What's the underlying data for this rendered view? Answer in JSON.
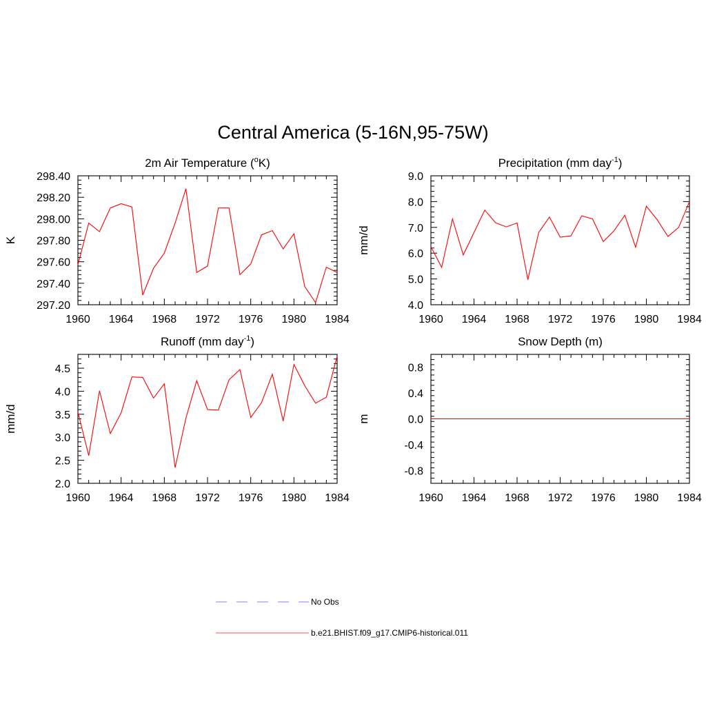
{
  "figure": {
    "title": "Central America (5-16N,95-75W)"
  },
  "legend": {
    "items": [
      {
        "label": "No Obs",
        "color": "#9a9aff",
        "style": "dashed"
      },
      {
        "label": "b.e21.BHIST.f09_g17.CMIP6-historical.011",
        "color": "#ff0000",
        "style": "solid"
      }
    ]
  },
  "chart_data": [
    {
      "id": "temp",
      "type": "line",
      "title": "2m Air Temperature (",
      "title_sup": "o",
      "title_tail": "K)",
      "ylabel": "K",
      "xlim": [
        1960,
        1984
      ],
      "ylim": [
        297.2,
        298.4
      ],
      "xticks": [
        "1960",
        "1964",
        "1968",
        "1972",
        "1976",
        "1980",
        "1984"
      ],
      "yticks": [
        "297.20",
        "297.40",
        "297.60",
        "297.80",
        "298.00",
        "298.20",
        "298.40"
      ],
      "grid": false,
      "series": [
        {
          "color": "#ff0000",
          "x": [
            1960,
            1961,
            1962,
            1963,
            1964,
            1965,
            1966,
            1967,
            1968,
            1969,
            1970,
            1971,
            1972,
            1973,
            1974,
            1975,
            1976,
            1977,
            1978,
            1979,
            1980,
            1981,
            1982,
            1983,
            1984
          ],
          "values": [
            297.57,
            297.96,
            297.88,
            298.1,
            298.14,
            298.11,
            297.29,
            297.54,
            297.68,
            297.96,
            298.28,
            297.5,
            297.56,
            298.1,
            298.1,
            297.48,
            297.58,
            297.85,
            297.89,
            297.72,
            297.86,
            297.37,
            297.22,
            297.55,
            297.5
          ]
        }
      ]
    },
    {
      "id": "precip",
      "type": "line",
      "title": "Precipitation (mm day",
      "title_sup": "-1",
      "title_tail": ")",
      "ylabel": "mm/d",
      "xlim": [
        1960,
        1984
      ],
      "ylim": [
        4.0,
        9.0
      ],
      "xticks": [
        "1960",
        "1964",
        "1968",
        "1972",
        "1976",
        "1980",
        "1984"
      ],
      "yticks": [
        "4.0",
        "5.0",
        "6.0",
        "7.0",
        "8.0",
        "9.0"
      ],
      "grid": false,
      "series": [
        {
          "color": "#ff0000",
          "x": [
            1960,
            1961,
            1962,
            1963,
            1964,
            1965,
            1966,
            1967,
            1968,
            1969,
            1970,
            1971,
            1972,
            1973,
            1974,
            1975,
            1976,
            1977,
            1978,
            1979,
            1980,
            1981,
            1982,
            1983,
            1984
          ],
          "values": [
            6.25,
            5.45,
            7.33,
            5.93,
            6.8,
            7.67,
            7.18,
            7.02,
            7.17,
            4.97,
            6.8,
            7.4,
            6.62,
            6.67,
            7.45,
            7.33,
            6.45,
            6.87,
            7.47,
            6.23,
            7.82,
            7.3,
            6.65,
            7.0,
            8.0
          ]
        }
      ]
    },
    {
      "id": "runoff",
      "type": "line",
      "title": "Runoff (mm day",
      "title_sup": "-1",
      "title_tail": ")",
      "ylabel": "mm/d",
      "xlim": [
        1960,
        1984
      ],
      "ylim": [
        2.0,
        4.8
      ],
      "xticks": [
        "1960",
        "1964",
        "1968",
        "1972",
        "1976",
        "1980",
        "1984"
      ],
      "yticks": [
        "2.0",
        "2.5",
        "3.0",
        "3.5",
        "4.0",
        "4.5"
      ],
      "grid": false,
      "series": [
        {
          "color": "#ff0000",
          "x": [
            1960,
            1961,
            1962,
            1963,
            1964,
            1965,
            1966,
            1967,
            1968,
            1969,
            1970,
            1971,
            1972,
            1973,
            1974,
            1975,
            1976,
            1977,
            1978,
            1979,
            1980,
            1981,
            1982,
            1983,
            1984
          ],
          "values": [
            3.55,
            2.6,
            4.01,
            3.08,
            3.53,
            4.31,
            4.3,
            3.85,
            4.16,
            2.34,
            3.42,
            4.23,
            3.6,
            3.59,
            4.25,
            4.47,
            3.43,
            3.75,
            4.37,
            3.35,
            4.58,
            4.12,
            3.74,
            3.87,
            4.76
          ]
        }
      ]
    },
    {
      "id": "snow",
      "type": "line",
      "title": "Snow Depth (m)",
      "title_sup": "",
      "title_tail": "",
      "ylabel": "m",
      "xlim": [
        1960,
        1984
      ],
      "ylim": [
        -1.0,
        1.0
      ],
      "xticks": [
        "1960",
        "1964",
        "1968",
        "1972",
        "1976",
        "1980",
        "1984"
      ],
      "yticks": [
        "-0.8",
        "-0.4",
        "0.0",
        "0.4",
        "0.8"
      ],
      "grid": false,
      "series": [
        {
          "color": "#ff0000",
          "x": [
            1960,
            1961,
            1962,
            1963,
            1964,
            1965,
            1966,
            1967,
            1968,
            1969,
            1970,
            1971,
            1972,
            1973,
            1974,
            1975,
            1976,
            1977,
            1978,
            1979,
            1980,
            1981,
            1982,
            1983,
            1984
          ],
          "values": [
            0,
            0,
            0,
            0,
            0,
            0,
            0,
            0,
            0,
            0,
            0,
            0,
            0,
            0,
            0,
            0,
            0,
            0,
            0,
            0,
            0,
            0,
            0,
            0,
            0
          ]
        }
      ]
    }
  ]
}
